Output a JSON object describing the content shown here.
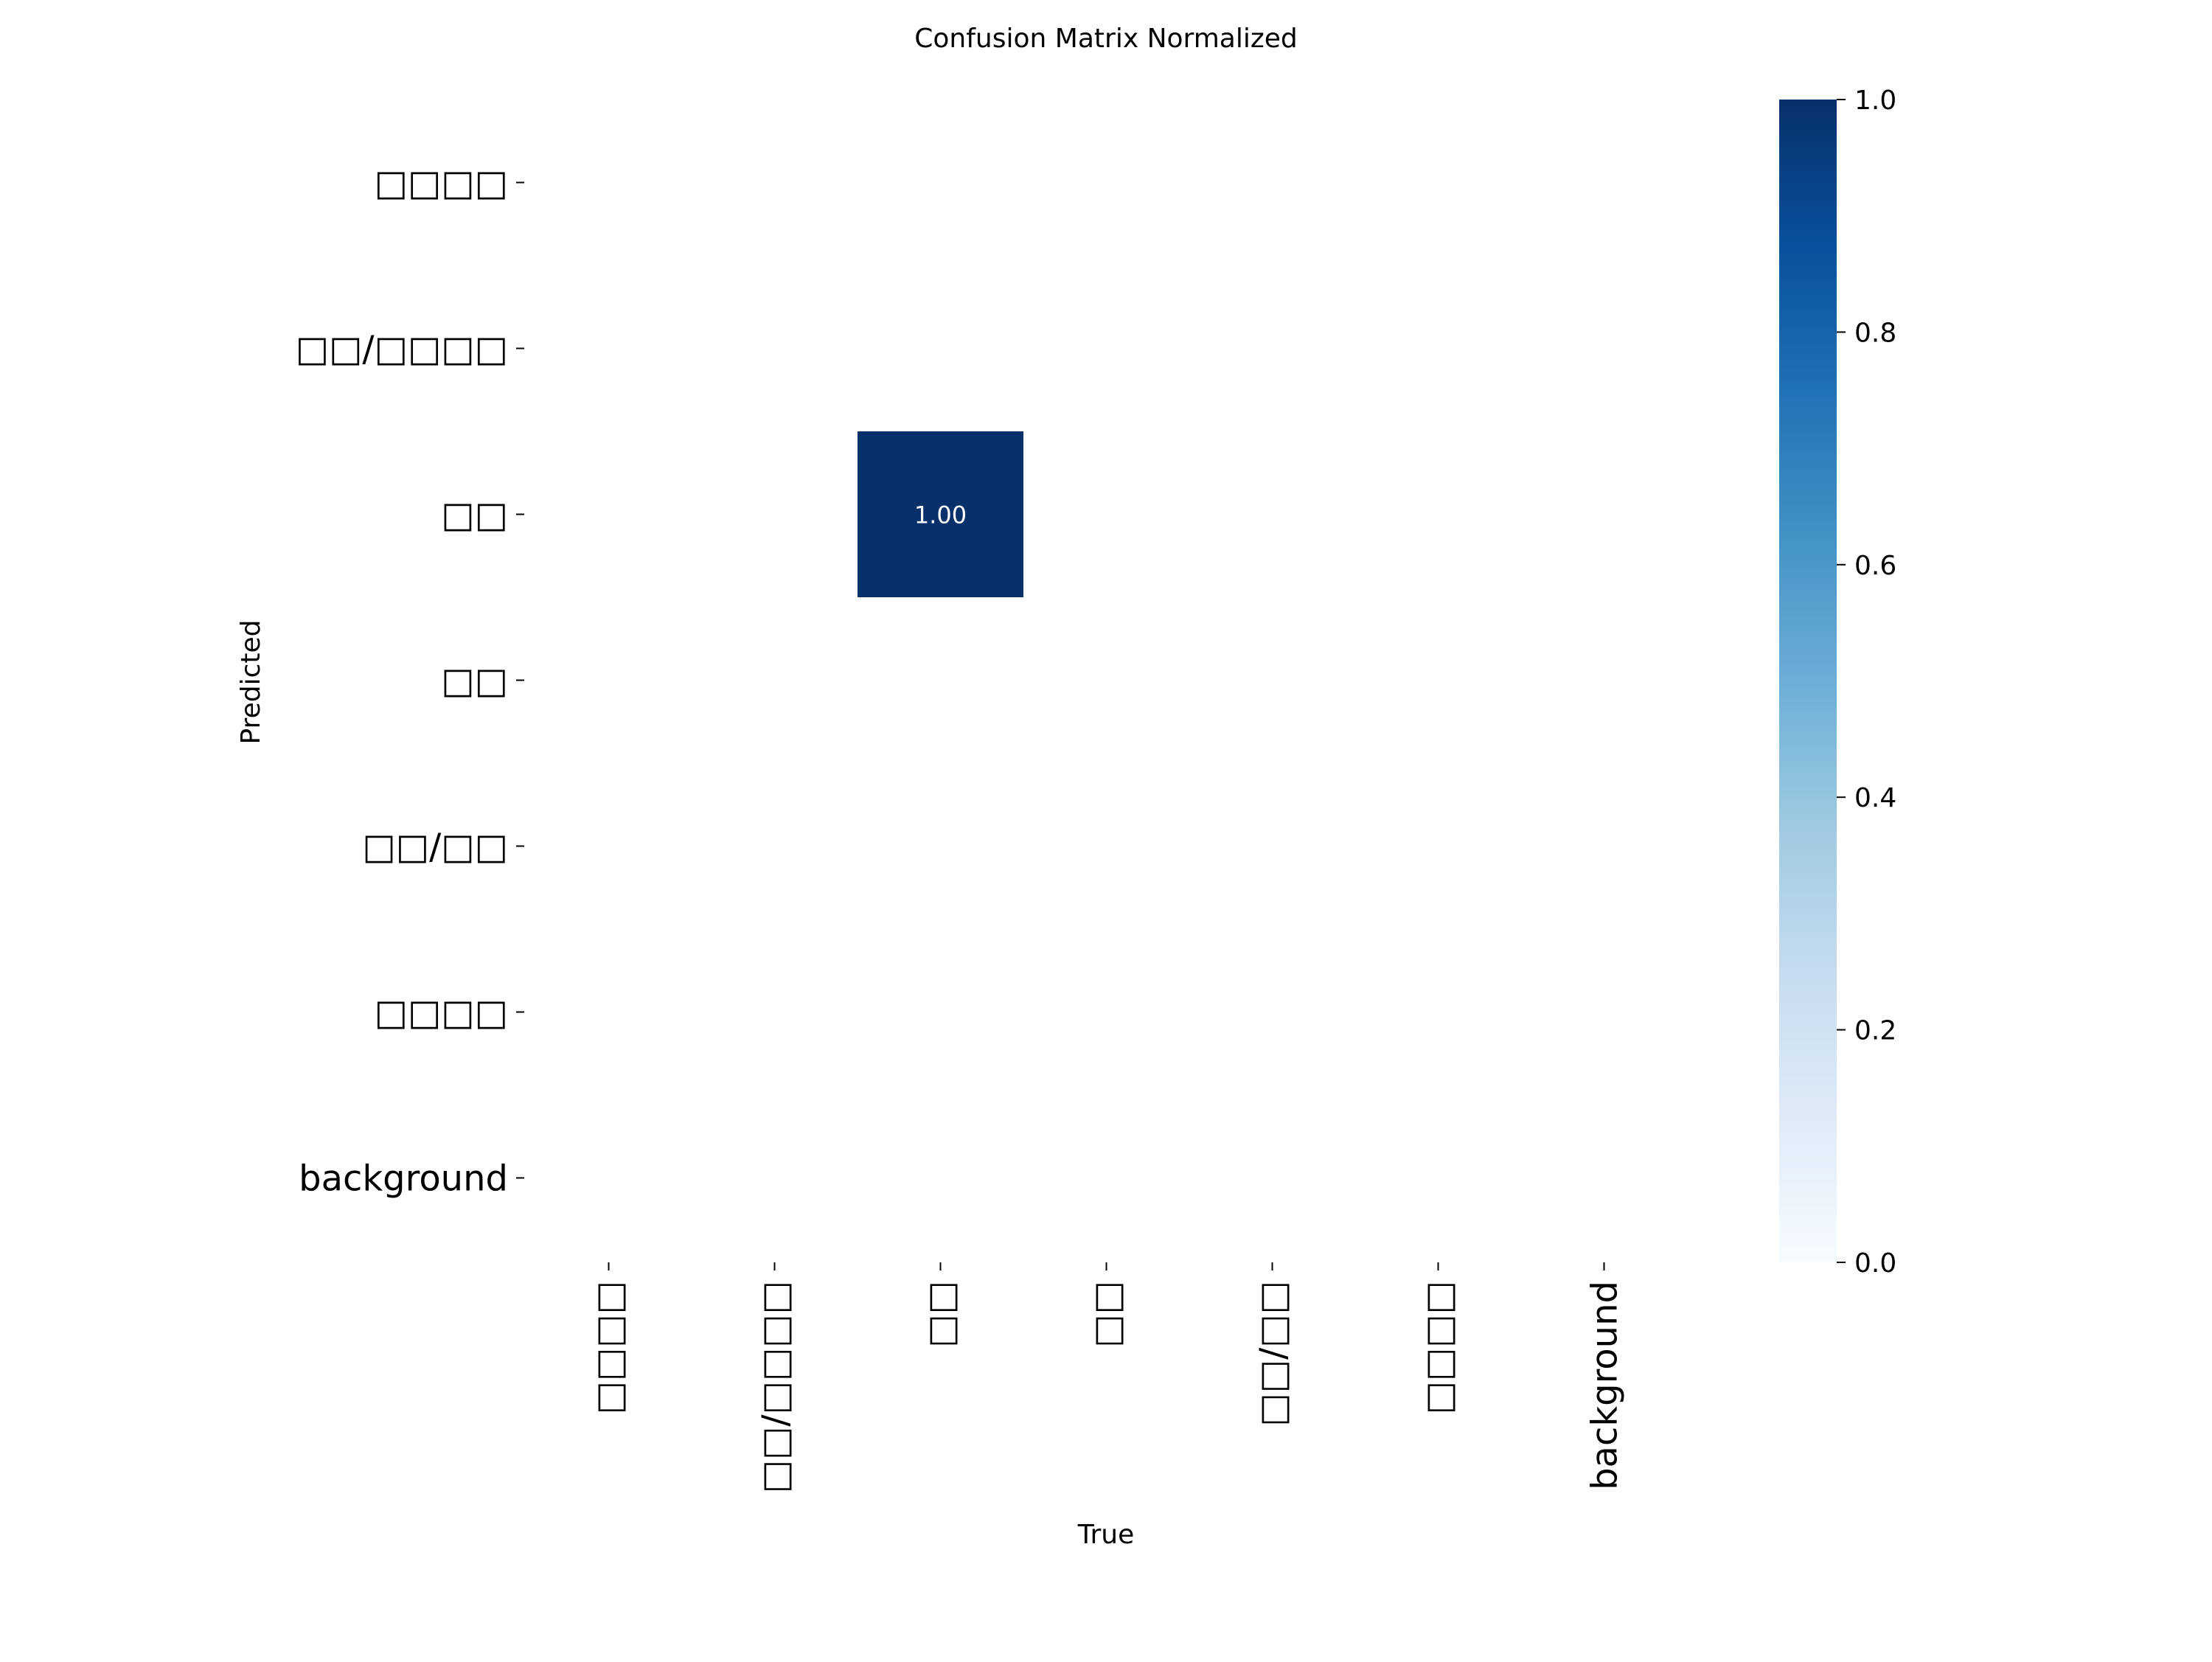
{
  "chart_data": {
    "type": "heatmap",
    "title": "Confusion Matrix Normalized",
    "xlabel": "True",
    "ylabel": "Predicted",
    "x_categories": [
      "□□□□",
      "□□/□□□□",
      "□□",
      "□□",
      "□□/□□",
      "□□□□",
      "background"
    ],
    "y_categories": [
      "□□□□",
      "□□/□□□□",
      "□□",
      "□□",
      "□□/□□",
      "□□□□",
      "background"
    ],
    "cells": [
      {
        "row": 2,
        "col": 2,
        "value": 1.0,
        "label": "1.00"
      }
    ],
    "colorbar": {
      "range": [
        0.0,
        1.0
      ],
      "ticks": [
        "0.0",
        "0.2",
        "0.4",
        "0.6",
        "0.8",
        "1.0"
      ],
      "colormap": "Blues",
      "low_color": "#f7fbff",
      "high_color": "#08306b"
    },
    "grid": false,
    "legend": "colorbar-right"
  }
}
